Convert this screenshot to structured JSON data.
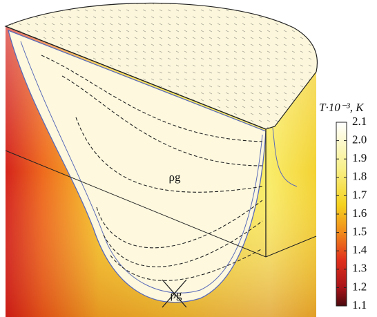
{
  "figure": {
    "labels": [
      "ρg",
      "ρg"
    ],
    "colorbar": {
      "title": "T·10⁻³, K",
      "clim": [
        1.1,
        2.1
      ],
      "ticks": [
        {
          "value": 2.1,
          "label": "2.1"
        },
        {
          "value": 2.0,
          "label": "2.0"
        },
        {
          "value": 1.9,
          "label": "1.9"
        },
        {
          "value": 1.8,
          "label": "1.8"
        },
        {
          "value": 1.7,
          "label": "1.7"
        },
        {
          "value": 1.6,
          "label": "1.6"
        },
        {
          "value": 1.5,
          "label": "1.5"
        },
        {
          "value": 1.4,
          "label": "1.4"
        },
        {
          "value": 1.3,
          "label": "1.3"
        },
        {
          "value": 1.2,
          "label": "1.2"
        },
        {
          "value": 1.1,
          "label": "1.1"
        }
      ]
    }
  }
}
